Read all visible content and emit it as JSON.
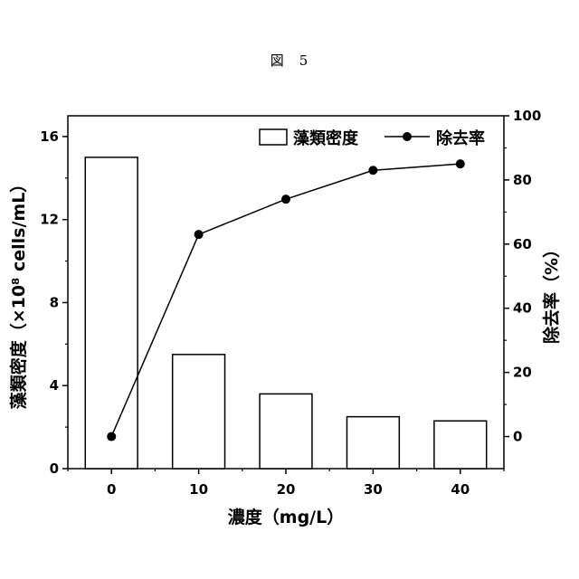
{
  "figure_caption": "図　5",
  "chart_data": {
    "type": "bar+line",
    "categories": [
      "0",
      "10",
      "20",
      "30",
      "40"
    ],
    "xlabel": "濃度（mg/L）",
    "bar_series": {
      "name": "藻類密度",
      "values": [
        15.0,
        5.5,
        3.6,
        2.5,
        2.3
      ],
      "axis": "left",
      "ylabel": "藻類密度（×10⁸ cells/mL）",
      "ylim": [
        0,
        17
      ],
      "yticks": [
        0,
        4,
        8,
        12,
        16
      ]
    },
    "line_series": {
      "name": "除去率",
      "values": [
        0,
        63,
        74,
        83,
        85
      ],
      "axis": "right",
      "ylabel": "除去率（%）",
      "ylim": [
        -10,
        100
      ],
      "yticks": [
        0,
        20,
        40,
        60,
        80,
        100
      ]
    },
    "legend_position": "top-right",
    "grid": false
  }
}
